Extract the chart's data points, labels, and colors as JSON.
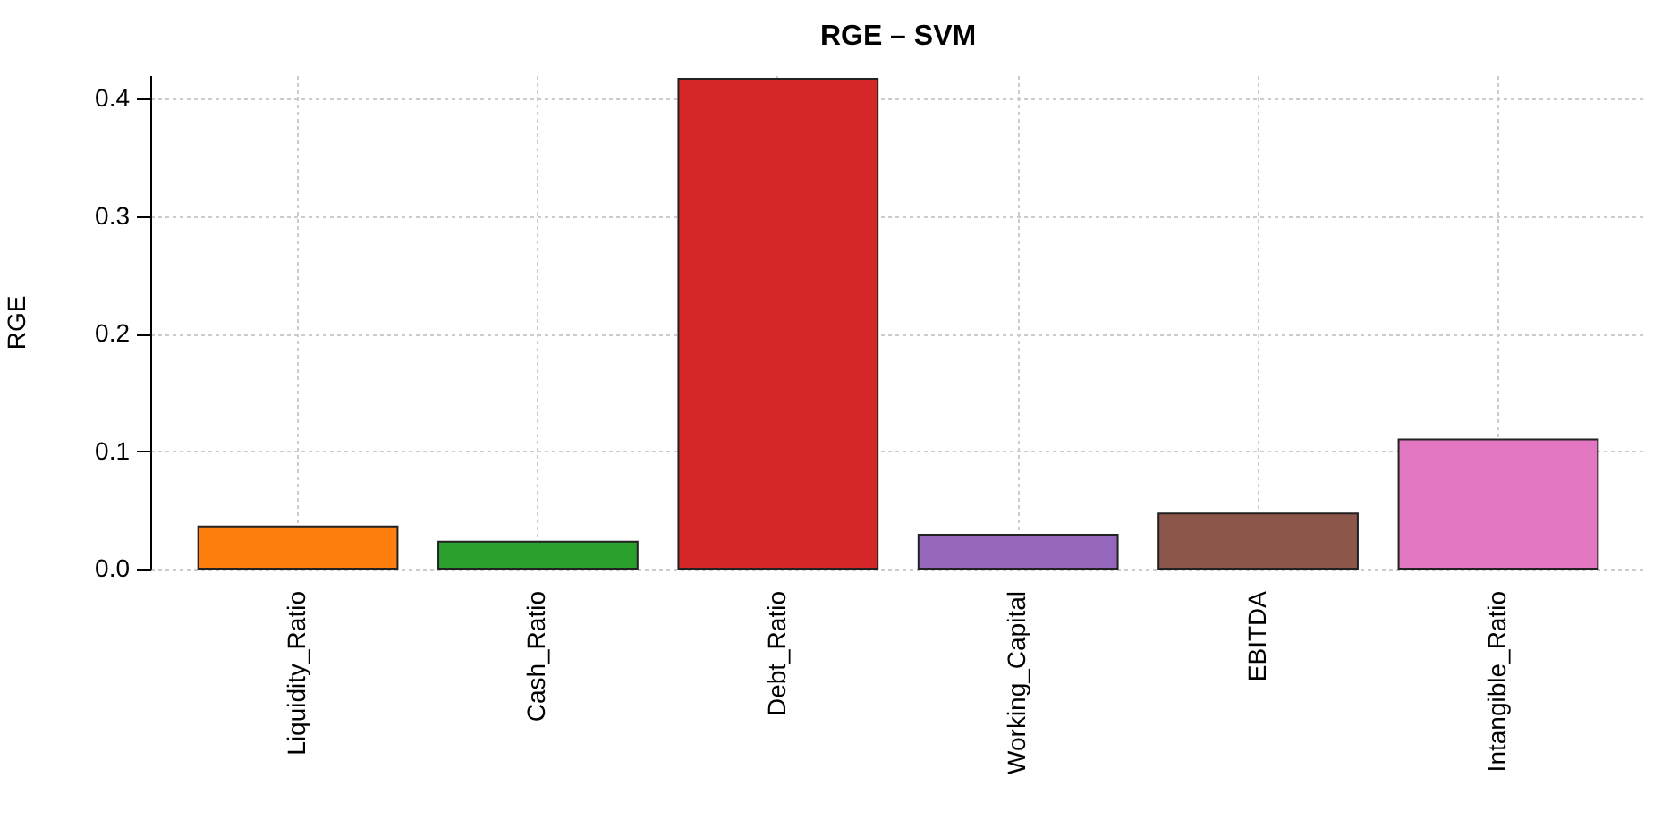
{
  "chart_data": {
    "type": "bar",
    "title": "RGE – SVM",
    "ylabel": "RGE",
    "categories": [
      "Liquidity_Ratio",
      "Cash_Ratio",
      "Debt_Ratio",
      "Working_Capital",
      "EBITDA",
      "Intangible_Ratio"
    ],
    "values": [
      0.036,
      0.023,
      0.417,
      0.029,
      0.047,
      0.11
    ],
    "colors": [
      "#ff7f0e",
      "#2ca02c",
      "#d62728",
      "#9467bd",
      "#8c564b",
      "#e377c2"
    ],
    "ylim": [
      0,
      0.42
    ],
    "yticks": [
      {
        "value": 0,
        "label": "0.0"
      },
      {
        "value": 0.1,
        "label": "0.1"
      },
      {
        "value": 0.2,
        "label": "0.2"
      },
      {
        "value": 0.3,
        "label": "0.3"
      },
      {
        "value": 0.4,
        "label": "0.4"
      }
    ],
    "grid": true
  }
}
